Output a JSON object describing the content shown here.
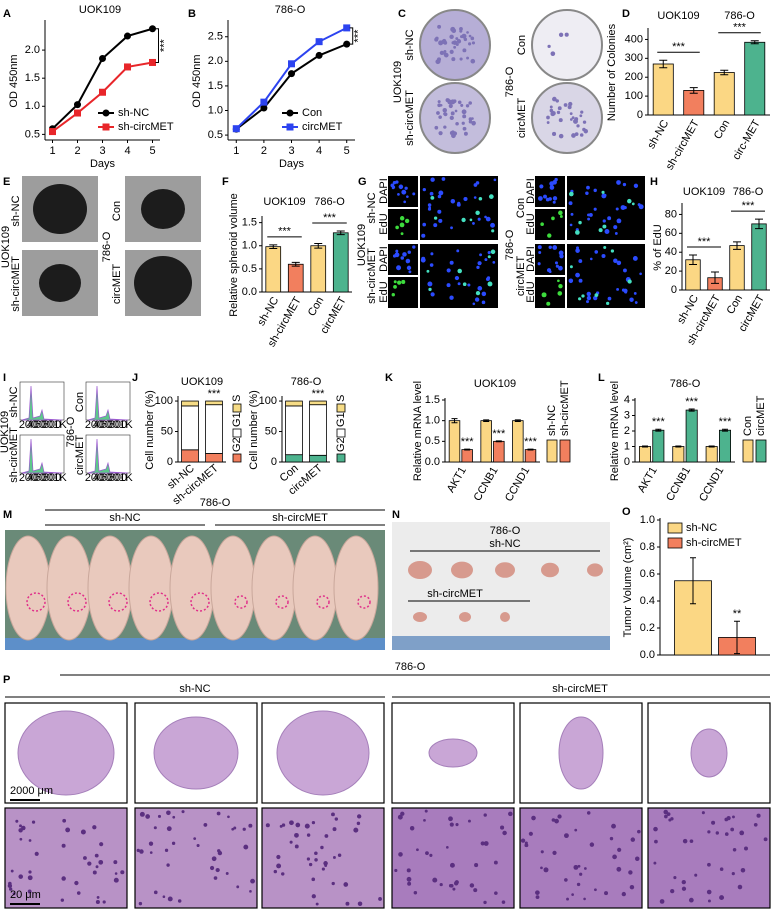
{
  "chart_data": [
    {
      "type": "line",
      "panel": "A",
      "title": "UOK109",
      "ylabel": "OD 450nm",
      "xlabel": "Days",
      "x": [
        1,
        2,
        3,
        4,
        5
      ],
      "xlim": [
        0.7,
        5.3
      ],
      "xticks": [
        1,
        2,
        3,
        4,
        5
      ],
      "ylim": [
        0.4,
        2.5
      ],
      "yticks": [
        0.5,
        {
          "value": 1,
          "label": "1.0"
        },
        1.5,
        {
          "value": 2,
          "label": "2.0"
        }
      ],
      "series": [
        {
          "name": "sh-NC",
          "color": "#000000",
          "marker": "circle",
          "values": [
            0.6,
            1.03,
            1.85,
            2.25,
            2.38
          ]
        },
        {
          "name": "sh-circMET",
          "color": "#e8262a",
          "marker": "square",
          "values": [
            0.55,
            0.88,
            1.25,
            1.7,
            1.78
          ]
        }
      ],
      "annotation": "***"
    },
    {
      "type": "line",
      "panel": "B",
      "title": "786-O",
      "ylabel": "OD 450nm",
      "xlabel": "Days",
      "x": [
        1,
        2,
        3,
        4,
        5
      ],
      "xlim": [
        0.7,
        5.3
      ],
      "xticks": [
        1,
        2,
        3,
        4,
        5
      ],
      "ylim": [
        0.4,
        2.8
      ],
      "yticks": [
        0.5,
        {
          "value": 1,
          "label": "1.0"
        },
        1.5,
        {
          "value": 2,
          "label": "2.0"
        },
        2.5
      ],
      "series": [
        {
          "name": "Con",
          "color": "#000000",
          "marker": "circle",
          "values": [
            0.62,
            1.05,
            1.75,
            2.12,
            2.35
          ]
        },
        {
          "name": "circMET",
          "color": "#2c43f0",
          "marker": "square",
          "values": [
            0.63,
            1.17,
            1.95,
            2.4,
            2.68
          ]
        }
      ],
      "annotation": "***"
    },
    {
      "type": "bar",
      "panel": "D",
      "ylabel": "Number of Colonies",
      "categories": [
        "sh-NC",
        "sh-circMET",
        "Con",
        "circ-MET"
      ],
      "values": [
        270,
        130,
        225,
        385
      ],
      "errors": [
        20,
        15,
        12,
        8
      ],
      "colors": [
        "#fbd784",
        "#f27f5e",
        "#fbd784",
        "#4db38e"
      ],
      "ylim": [
        0,
        450
      ],
      "yticks": [
        0,
        100,
        200,
        300,
        400
      ],
      "groups": [
        {
          "label": "UOK109",
          "annotation": "***"
        },
        {
          "label": "786-O",
          "annotation": "***"
        }
      ]
    },
    {
      "type": "bar",
      "panel": "F",
      "ylabel": "Relative spheroid volume",
      "categories": [
        "sh-NC",
        "sh-circMET",
        "Con",
        "circMET"
      ],
      "values": [
        0.98,
        0.6,
        1.0,
        1.28
      ],
      "errors": [
        0.04,
        0.04,
        0.05,
        0.04
      ],
      "colors": [
        "#fbd784",
        "#f27f5e",
        "#fbd784",
        "#4db38e"
      ],
      "ylim": [
        0,
        1.6
      ],
      "yticks": [
        {
          "value": 0,
          "label": "0.0"
        },
        0.5,
        {
          "value": 1,
          "label": "1.0"
        },
        1.5
      ],
      "groups": [
        {
          "label": "UOK109",
          "annotation": "***"
        },
        {
          "label": "786-O",
          "annotation": "***"
        }
      ]
    },
    {
      "type": "bar",
      "panel": "H",
      "ylabel": "% of EdU",
      "categories": [
        "sh-NC",
        "sh-circMET",
        "Con",
        "circMET"
      ],
      "values": [
        32,
        13,
        47,
        70
      ],
      "errors": [
        5,
        6,
        4,
        5
      ],
      "colors": [
        "#fbd784",
        "#f27f5e",
        "#fbd784",
        "#4db38e"
      ],
      "ylim": [
        0,
        90
      ],
      "yticks": [
        0,
        20,
        40,
        60,
        80
      ],
      "groups": [
        {
          "label": "UOK109",
          "annotation": "***"
        },
        {
          "label": "786-O",
          "annotation": "***"
        }
      ]
    },
    {
      "type": "stacked_bar",
      "panel": "J",
      "title": "UOK109",
      "ylabel": "Cell number (%)",
      "categories": [
        "sh-NC",
        "sh-circMET"
      ],
      "ylim": [
        0,
        105
      ],
      "yticks": [
        0,
        50,
        100
      ],
      "series": [
        {
          "name": "G2",
          "color": "#f27f5e",
          "values": [
            20,
            14
          ]
        },
        {
          "name": "G1",
          "color": "#ffffff",
          "values": [
            72,
            80
          ]
        },
        {
          "name": "S",
          "color": "#f6dc86",
          "values": [
            8,
            6
          ]
        }
      ],
      "annotation": "***"
    },
    {
      "type": "stacked_bar",
      "title": "786-O",
      "ylabel": "Cell number (%)",
      "categories": [
        "Con",
        "circMET"
      ],
      "ylim": [
        0,
        105
      ],
      "yticks": [
        0,
        50,
        100
      ],
      "series": [
        {
          "name": "G2",
          "color": "#4db38e",
          "values": [
            12,
            11
          ]
        },
        {
          "name": "G1",
          "color": "#ffffff",
          "values": [
            80,
            83
          ]
        },
        {
          "name": "S",
          "color": "#f6dc86",
          "values": [
            8,
            6
          ]
        }
      ],
      "annotation": "***"
    },
    {
      "type": "grouped_bar",
      "panel": "K",
      "title": "UOK109",
      "ylabel": "Relative mRNA level",
      "categories": [
        "AKT1",
        "CCNB1",
        "CCND1"
      ],
      "ylim": [
        0,
        1.5
      ],
      "yticks": [
        {
          "value": 0,
          "label": "0.0"
        },
        0.5,
        {
          "value": 1,
          "label": "1.0"
        },
        1.5
      ],
      "series": [
        {
          "name": "sh-NC",
          "color": "#fbd784",
          "values": [
            1.0,
            1.0,
            1.0
          ],
          "errors": [
            0.05,
            0.02,
            0.02
          ]
        },
        {
          "name": "sh-circMET",
          "color": "#f27f5e",
          "values": [
            0.3,
            0.5,
            0.3
          ],
          "errors": [
            0.01,
            0.01,
            0.01
          ]
        }
      ],
      "annotation": "***"
    },
    {
      "type": "grouped_bar",
      "panel": "L",
      "title": "786-O",
      "ylabel": "Relative mRNA level",
      "categories": [
        "AKT1",
        "CCNB1",
        "CCND1"
      ],
      "ylim": [
        0,
        4
      ],
      "yticks": [
        0,
        1,
        2,
        3,
        4
      ],
      "series": [
        {
          "name": "Con",
          "color": "#fbd784",
          "values": [
            1.0,
            1.0,
            1.0
          ],
          "errors": [
            0.03,
            0.03,
            0.03
          ]
        },
        {
          "name": "circMET",
          "color": "#4db38e",
          "values": [
            2.05,
            3.35,
            2.05
          ],
          "errors": [
            0.06,
            0.07,
            0.06
          ]
        }
      ],
      "annotation": "***"
    },
    {
      "type": "grouped_bar",
      "panel": "O",
      "ylabel": "Tumor Volume (cm²)",
      "categories": [
        null
      ],
      "ylim": [
        0,
        1.0
      ],
      "yticks": [
        {
          "value": 0,
          "label": "0.0"
        },
        0.2,
        0.4,
        0.6,
        0.8,
        {
          "value": 1,
          "label": "1.0"
        }
      ],
      "series": [
        {
          "name": "sh-NC",
          "color": "#fbd784",
          "values": [
            0.55
          ],
          "errors": [
            0.17
          ]
        },
        {
          "name": "sh-circMET",
          "color": "#f27f5e",
          "values": [
            0.13
          ],
          "errors": [
            0.12
          ]
        }
      ],
      "annotation": "**"
    }
  ],
  "figure": {
    "C": {
      "letter": "C",
      "left": {
        "group": "UOK109",
        "rows": [
          "sh-NC",
          "sh-circMET"
        ]
      },
      "right": {
        "group": "786-O",
        "rows": [
          "Con",
          "circMET"
        ]
      }
    },
    "E": {
      "letter": "E",
      "left": {
        "group": "UOK109",
        "rows": [
          "sh-NC",
          "sh-circMET"
        ]
      },
      "right": {
        "group": "786-O",
        "rows": [
          "Con",
          "circMET"
        ]
      }
    },
    "G": {
      "letter": "G",
      "left": {
        "group": "UOK109",
        "rows": [
          "sh-NC",
          "sh-circMET"
        ]
      },
      "right": {
        "group": "786-O",
        "rows": [
          "Con",
          "circMET"
        ]
      },
      "stains": [
        "DAPI",
        "EdU"
      ]
    },
    "I": {
      "letter": "I",
      "left": {
        "group": "UOK109",
        "rows": [
          "sh-NC",
          "sh-circMET"
        ]
      },
      "right": {
        "group": "786-O",
        "rows": [
          "Con",
          "circMET"
        ]
      },
      "ticks": [
        "200",
        "400",
        "600",
        "800",
        "1K"
      ]
    },
    "M": {
      "letter": "M",
      "group": "786-O",
      "arms": [
        "sh-NC",
        "sh-circMET"
      ]
    },
    "N": {
      "letter": "N",
      "group": "786-O",
      "arms": [
        "sh-NC",
        "sh-circMET"
      ]
    },
    "P": {
      "letter": "P",
      "group": "786-O",
      "arms": [
        "sh-NC",
        "sh-circMET"
      ],
      "scale_bars": [
        "2000 μm",
        "20 μm"
      ]
    }
  }
}
